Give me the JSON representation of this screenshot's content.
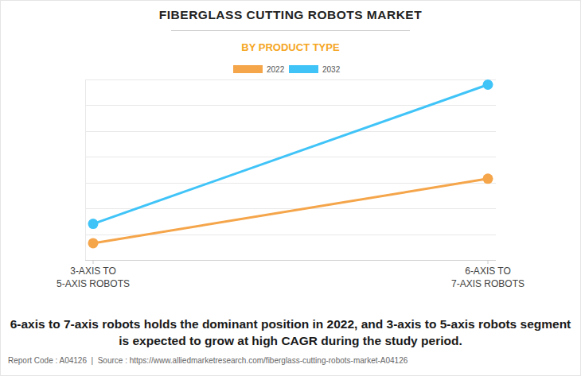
{
  "chart_data": {
    "type": "line",
    "title": "FIBERGLASS CUTTING ROBOTS MARKET",
    "subtitle": "BY PRODUCT TYPE",
    "categories": [
      "3-AXIS TO\n5-AXIS ROBOTS",
      "6-AXIS TO\n7-AXIS ROBOTS"
    ],
    "series": [
      {
        "name": "2022",
        "color": "#f5a54a",
        "values": [
          0.65,
          3.15
        ]
      },
      {
        "name": "2032",
        "color": "#40c4f8",
        "values": [
          1.4,
          6.8
        ]
      }
    ],
    "ylim": [
      0,
      7
    ],
    "yticks": [
      0,
      1,
      2,
      3,
      4,
      5,
      6,
      7
    ],
    "grid": true,
    "legend": "top",
    "tick_labels": "x",
    "marker": "circle",
    "annotation": "6-axis to 7-axis robots holds the dominant position in 2022, and 3-axis to 5-axis robots segment is expected to grow at high CAGR during the study period.",
    "footer": "Report Code : A04126  |  Source : https://www.alliedmarketresearch.com/fiberglass-cutting-robots-market-A04126"
  }
}
